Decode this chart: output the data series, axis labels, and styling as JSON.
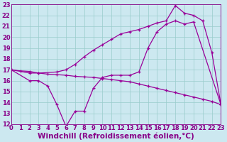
{
  "xlabel": "Windchill (Refroidissement éolien,°C)",
  "ylabel": "",
  "bg_color": "#cce8f0",
  "line_color": "#990099",
  "ylim": [
    12,
    23
  ],
  "xlim": [
    0,
    23
  ],
  "yticks": [
    12,
    13,
    14,
    15,
    16,
    17,
    18,
    19,
    20,
    21,
    22,
    23
  ],
  "xticks": [
    0,
    1,
    2,
    3,
    4,
    5,
    6,
    7,
    8,
    9,
    10,
    11,
    12,
    13,
    14,
    15,
    16,
    17,
    18,
    19,
    20,
    21,
    22,
    23
  ],
  "series": [
    {
      "x": [
        0,
        1,
        2,
        3,
        4,
        5,
        6,
        7,
        8,
        9,
        10,
        11,
        12,
        13,
        14,
        15,
        16,
        17,
        18,
        19,
        20,
        21,
        22,
        23
      ],
      "y": [
        17.0,
        16.9,
        16.85,
        16.7,
        16.6,
        16.55,
        16.5,
        16.4,
        16.35,
        16.3,
        16.2,
        16.1,
        16.0,
        15.9,
        15.7,
        15.5,
        15.3,
        15.1,
        14.9,
        14.7,
        14.5,
        14.3,
        14.1,
        13.8
      ]
    },
    {
      "x": [
        0,
        2,
        3,
        4,
        5,
        6,
        7,
        8,
        9,
        10,
        11,
        12,
        13,
        14,
        15,
        16,
        17,
        18,
        19,
        20,
        23
      ],
      "y": [
        17.0,
        16.0,
        16.0,
        15.5,
        13.8,
        11.8,
        13.2,
        13.2,
        15.3,
        16.3,
        16.5,
        16.5,
        16.5,
        16.8,
        19.0,
        20.5,
        21.2,
        21.5,
        21.2,
        21.4,
        13.8
      ]
    },
    {
      "x": [
        0,
        2,
        3,
        5,
        6,
        7,
        8,
        9,
        10,
        11,
        12,
        13,
        14,
        15,
        16,
        17,
        18,
        19,
        20,
        21,
        22,
        23
      ],
      "y": [
        17.0,
        16.7,
        16.7,
        16.8,
        17.0,
        17.5,
        18.2,
        18.8,
        19.3,
        19.8,
        20.3,
        20.5,
        20.7,
        21.0,
        21.3,
        21.5,
        22.9,
        22.2,
        22.0,
        21.5,
        18.6,
        13.8
      ]
    }
  ],
  "font_color": "#880088",
  "grid_color": "#99cccc",
  "tick_fontsize": 6.0,
  "xlabel_fontsize": 7.5
}
